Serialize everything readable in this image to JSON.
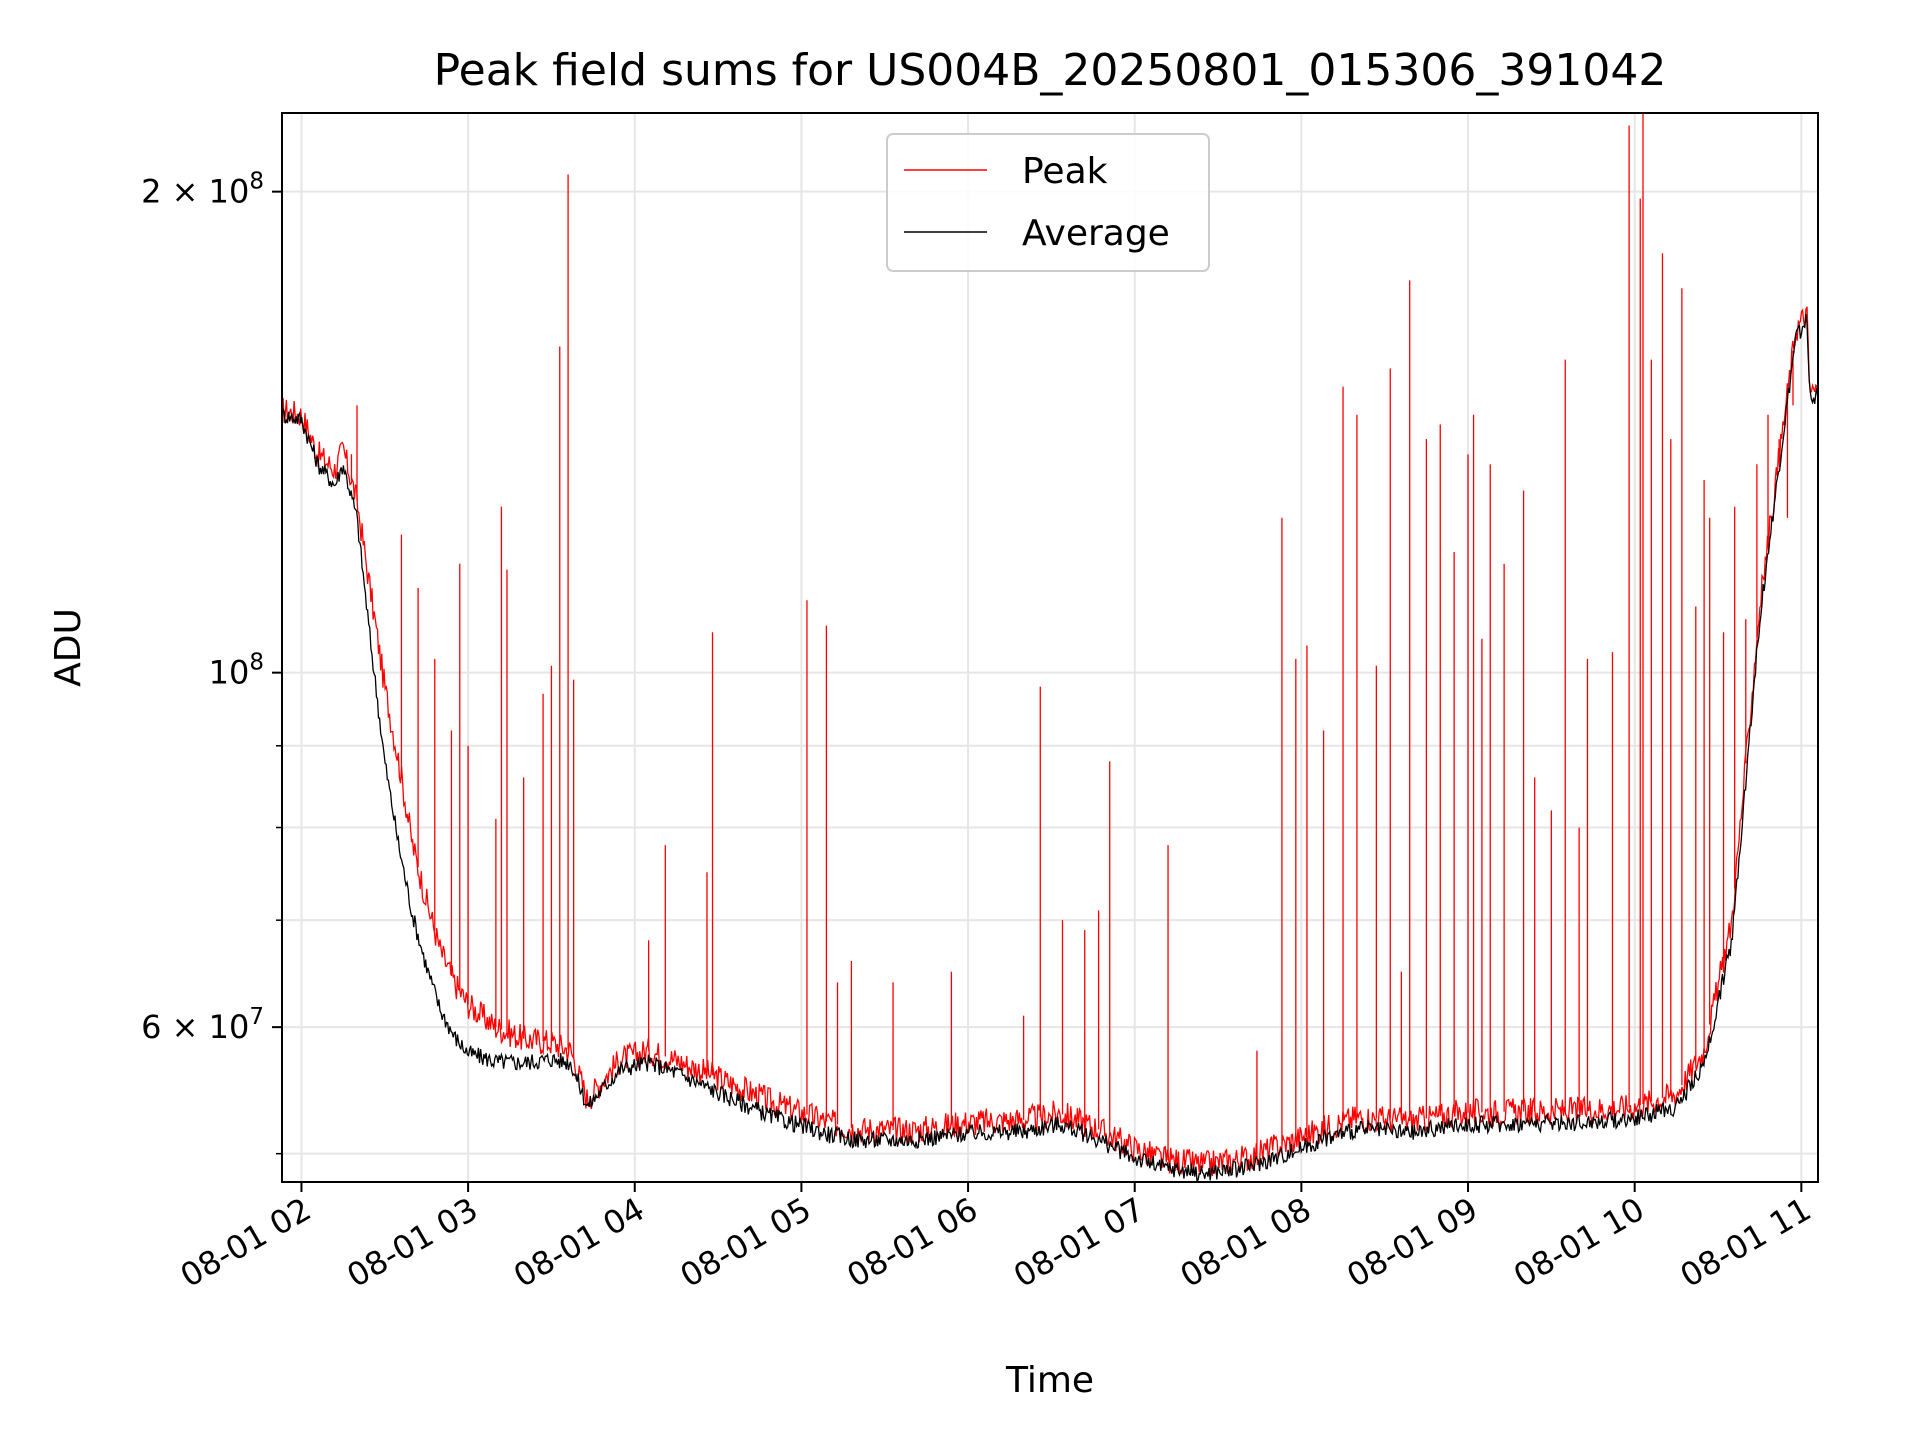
{
  "chart_data": {
    "type": "line",
    "title": "Peak field sums for US004B_20250801_015306_391042",
    "xlabel": "Time",
    "ylabel": "ADU",
    "xlim": [
      "08-01 01:53",
      "08-01 11:06"
    ],
    "ylim": [
      48000000,
      224000000
    ],
    "yscale": "log",
    "grid": true,
    "legend_position": "top-center",
    "x_ticks": [
      "08-01 02",
      "08-01 03",
      "08-01 04",
      "08-01 05",
      "08-01 06",
      "08-01 07",
      "08-01 08",
      "08-01 09",
      "08-01 10",
      "08-01 11"
    ],
    "y_ticks": [
      {
        "value": 60000000,
        "mant": "6",
        "exp": "7"
      },
      {
        "value": 100000000,
        "mant": "",
        "exp": "8"
      },
      {
        "value": 200000000,
        "mant": "2",
        "exp": "8"
      }
    ],
    "y_tick_prefix": "10",
    "y_tick_times": "×",
    "y_minor_ticks": [
      50000000,
      70000000,
      80000000,
      90000000
    ],
    "series": [
      {
        "name": "Peak",
        "color": "#ff0000",
        "base": [
          [
            "08-01 01:53",
            146000000
          ],
          [
            "08-01 02:00",
            145000000
          ],
          [
            "08-01 02:06",
            137000000
          ],
          [
            "08-01 02:12",
            134000000
          ],
          [
            "08-01 02:15",
            138000000
          ],
          [
            "08-01 02:20",
            128000000
          ],
          [
            "08-01 02:25",
            112000000
          ],
          [
            "08-01 02:30",
            98000000
          ],
          [
            "08-01 02:35",
            88000000
          ],
          [
            "08-01 02:40",
            78000000
          ],
          [
            "08-01 02:45",
            72000000
          ],
          [
            "08-01 02:50",
            67000000
          ],
          [
            "08-01 02:55",
            64000000
          ],
          [
            "08-01 03:00",
            62000000
          ],
          [
            "08-01 03:10",
            60000000
          ],
          [
            "08-01 03:20",
            59000000
          ],
          [
            "08-01 03:30",
            58700000
          ],
          [
            "08-01 03:37",
            58000000
          ],
          [
            "08-01 03:43",
            54000000
          ],
          [
            "08-01 03:48",
            55500000
          ],
          [
            "08-01 03:55",
            57300000
          ],
          [
            "08-01 04:05",
            58000000
          ],
          [
            "08-01 04:15",
            57200000
          ],
          [
            "08-01 04:30",
            55800000
          ],
          [
            "08-01 04:50",
            53800000
          ],
          [
            "08-01 05:10",
            52300000
          ],
          [
            "08-01 05:20",
            51800000
          ],
          [
            "08-01 05:40",
            51700000
          ],
          [
            "08-01 06:00",
            52300000
          ],
          [
            "08-01 06:20",
            52500000
          ],
          [
            "08-01 06:33",
            53000000
          ],
          [
            "08-01 06:45",
            52000000
          ],
          [
            "08-01 07:00",
            50400000
          ],
          [
            "08-01 07:10",
            49600000
          ],
          [
            "08-01 07:25",
            49200000
          ],
          [
            "08-01 07:40",
            49700000
          ],
          [
            "08-01 07:55",
            50800000
          ],
          [
            "08-01 08:10",
            52000000
          ],
          [
            "08-01 08:20",
            52700000
          ],
          [
            "08-01 08:40",
            52400000
          ],
          [
            "08-01 08:55",
            53000000
          ],
          [
            "08-01 09:10",
            53100000
          ],
          [
            "08-01 09:40",
            53200000
          ],
          [
            "08-01 10:00",
            53500000
          ],
          [
            "08-01 10:15",
            54500000
          ],
          [
            "08-01 10:25",
            58000000
          ],
          [
            "08-01 10:35",
            70000000
          ],
          [
            "08-01 10:45",
            110000000
          ],
          [
            "08-01 10:58",
            164000000
          ],
          [
            "08-01 11:02",
            168000000
          ],
          [
            "08-01 11:03",
            150000000
          ],
          [
            "08-01 11:06",
            150000000
          ]
        ],
        "spikes": [
          [
            "08-01 02:18",
            137000000
          ],
          [
            "08-01 02:20",
            147000000
          ],
          [
            "08-01 02:36",
            122000000
          ],
          [
            "08-01 02:42",
            113000000
          ],
          [
            "08-01 02:48",
            102000000
          ],
          [
            "08-01 02:54",
            92000000
          ],
          [
            "08-01 02:57",
            117000000
          ],
          [
            "08-01 03:00",
            90000000
          ],
          [
            "08-01 03:10",
            81000000
          ],
          [
            "08-01 03:12",
            127000000
          ],
          [
            "08-01 03:14",
            116000000
          ],
          [
            "08-01 03:20",
            86000000
          ],
          [
            "08-01 03:27",
            97000000
          ],
          [
            "08-01 03:30",
            101000000
          ],
          [
            "08-01 03:33",
            160000000
          ],
          [
            "08-01 03:36",
            205000000
          ],
          [
            "08-01 03:38",
            99000000
          ],
          [
            "08-01 04:05",
            68000000
          ],
          [
            "08-01 04:11",
            78000000
          ],
          [
            "08-01 04:26",
            75000000
          ],
          [
            "08-01 04:28",
            106000000
          ],
          [
            "08-01 05:02",
            111000000
          ],
          [
            "08-01 05:09",
            107000000
          ],
          [
            "08-01 05:13",
            64000000
          ],
          [
            "08-01 05:18",
            66000000
          ],
          [
            "08-01 05:33",
            64000000
          ],
          [
            "08-01 05:54",
            65000000
          ],
          [
            "08-01 06:20",
            61000000
          ],
          [
            "08-01 06:26",
            98000000
          ],
          [
            "08-01 06:34",
            70000000
          ],
          [
            "08-01 06:42",
            69000000
          ],
          [
            "08-01 06:47",
            71000000
          ],
          [
            "08-01 06:51",
            88000000
          ],
          [
            "08-01 07:12",
            78000000
          ],
          [
            "08-01 07:44",
            58000000
          ],
          [
            "08-01 07:53",
            125000000
          ],
          [
            "08-01 07:58",
            102000000
          ],
          [
            "08-01 08:02",
            104000000
          ],
          [
            "08-01 08:08",
            92000000
          ],
          [
            "08-01 08:15",
            151000000
          ],
          [
            "08-01 08:20",
            145000000
          ],
          [
            "08-01 08:27",
            101000000
          ],
          [
            "08-01 08:32",
            155000000
          ],
          [
            "08-01 08:36",
            65000000
          ],
          [
            "08-01 08:39",
            176000000
          ],
          [
            "08-01 08:45",
            140000000
          ],
          [
            "08-01 08:50",
            143000000
          ],
          [
            "08-01 08:55",
            119000000
          ],
          [
            "08-01 09:00",
            137000000
          ],
          [
            "08-01 09:02",
            145000000
          ],
          [
            "08-01 09:05",
            105000000
          ],
          [
            "08-01 09:08",
            135000000
          ],
          [
            "08-01 09:13",
            117000000
          ],
          [
            "08-01 09:20",
            130000000
          ],
          [
            "08-01 09:24",
            86000000
          ],
          [
            "08-01 09:30",
            82000000
          ],
          [
            "08-01 09:35",
            157000000
          ],
          [
            "08-01 09:40",
            80000000
          ],
          [
            "08-01 09:43",
            102000000
          ],
          [
            "08-01 09:52",
            103000000
          ],
          [
            "08-01 09:58",
            220000000
          ],
          [
            "08-01 10:02",
            198000000
          ],
          [
            "08-01 10:03",
            224000000
          ],
          [
            "08-01 10:06",
            157000000
          ],
          [
            "08-01 10:10",
            183000000
          ],
          [
            "08-01 10:13",
            140000000
          ],
          [
            "08-01 10:17",
            174000000
          ],
          [
            "08-01 10:22",
            110000000
          ],
          [
            "08-01 10:25",
            132000000
          ],
          [
            "08-01 10:27",
            125000000
          ],
          [
            "08-01 10:32",
            106000000
          ],
          [
            "08-01 10:36",
            127000000
          ],
          [
            "08-01 10:40",
            108000000
          ],
          [
            "08-01 10:44",
            135000000
          ],
          [
            "08-01 10:48",
            145000000
          ],
          [
            "08-01 10:52",
            140000000
          ],
          [
            "08-01 10:55",
            125000000
          ],
          [
            "08-01 10:57",
            147000000
          ]
        ]
      },
      {
        "name": "Average",
        "color": "#000000",
        "base": [
          [
            "08-01 01:53",
            145000000
          ],
          [
            "08-01 02:00",
            144000000
          ],
          [
            "08-01 02:06",
            135000000
          ],
          [
            "08-01 02:12",
            131000000
          ],
          [
            "08-01 02:15",
            135000000
          ],
          [
            "08-01 02:20",
            125000000
          ],
          [
            "08-01 02:25",
            104000000
          ],
          [
            "08-01 02:30",
            88000000
          ],
          [
            "08-01 02:35",
            78000000
          ],
          [
            "08-01 02:40",
            70500000
          ],
          [
            "08-01 02:45",
            65500000
          ],
          [
            "08-01 02:50",
            61500000
          ],
          [
            "08-01 02:55",
            59200000
          ],
          [
            "08-01 03:00",
            57800000
          ],
          [
            "08-01 03:10",
            57100000
          ],
          [
            "08-01 03:20",
            57000000
          ],
          [
            "08-01 03:30",
            57300000
          ],
          [
            "08-01 03:37",
            57000000
          ],
          [
            "08-01 03:43",
            53500000
          ],
          [
            "08-01 03:48",
            54800000
          ],
          [
            "08-01 03:55",
            56500000
          ],
          [
            "08-01 04:05",
            57000000
          ],
          [
            "08-01 04:15",
            56200000
          ],
          [
            "08-01 04:30",
            54600000
          ],
          [
            "08-01 04:50",
            52700000
          ],
          [
            "08-01 05:10",
            51400000
          ],
          [
            "08-01 05:20",
            51000000
          ],
          [
            "08-01 05:40",
            51000000
          ],
          [
            "08-01 06:00",
            51500000
          ],
          [
            "08-01 06:20",
            51600000
          ],
          [
            "08-01 06:33",
            52200000
          ],
          [
            "08-01 06:45",
            51200000
          ],
          [
            "08-01 07:00",
            49700000
          ],
          [
            "08-01 07:10",
            49000000
          ],
          [
            "08-01 07:25",
            48600000
          ],
          [
            "08-01 07:40",
            49000000
          ],
          [
            "08-01 07:55",
            50000000
          ],
          [
            "08-01 08:10",
            51200000
          ],
          [
            "08-01 08:20",
            51800000
          ],
          [
            "08-01 08:40",
            51500000
          ],
          [
            "08-01 08:55",
            52100000
          ],
          [
            "08-01 09:10",
            52200000
          ],
          [
            "08-01 09:40",
            52300000
          ],
          [
            "08-01 10:00",
            52600000
          ],
          [
            "08-01 10:15",
            53500000
          ],
          [
            "08-01 10:25",
            56800000
          ],
          [
            "08-01 10:35",
            68000000
          ],
          [
            "08-01 10:45",
            108000000
          ],
          [
            "08-01 10:58",
            162000000
          ],
          [
            "08-01 11:02",
            166000000
          ],
          [
            "08-01 11:03",
            149000000
          ],
          [
            "08-01 11:06",
            149000000
          ]
        ]
      }
    ]
  }
}
